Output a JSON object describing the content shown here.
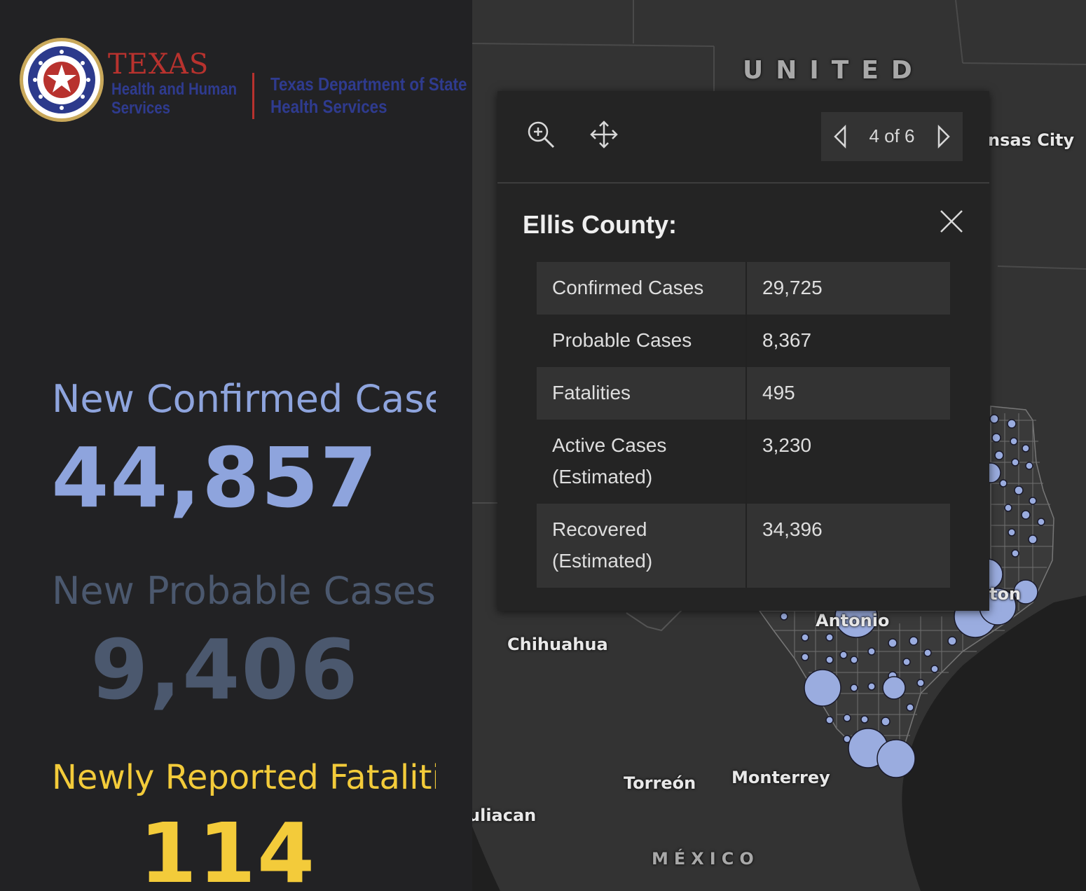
{
  "logo": {
    "hhs_title": "TEXAS",
    "hhs_line1": "Health and Human",
    "hhs_line2": "Services",
    "dshs_line1": "Texas Department of State",
    "dshs_line2": "Health Services"
  },
  "stats": {
    "confirmed_label": "New Confirmed Cases",
    "confirmed_value": "44,857",
    "probable_label": "New Probable Cases",
    "probable_value": "9,406",
    "fatal_label": "Newly Reported Fatalities",
    "fatal_value": "114"
  },
  "map": {
    "labels": {
      "united": "UNITED",
      "kansas_city": "nsas City",
      "chihuahua": "Chihuahua",
      "san_antonio": "Antonio",
      "houston": "ton",
      "torreon": "Torreón",
      "monterrey": "Monterrey",
      "culiacan": "uliacan",
      "mexico": "MÉXICO"
    }
  },
  "popup": {
    "pager": "4 of 6",
    "title": "Ellis County:",
    "rows": [
      {
        "key": "Confirmed Cases",
        "value": "29,725"
      },
      {
        "key": "Probable Cases",
        "value": "8,367"
      },
      {
        "key": "Fatalities",
        "value": "495"
      },
      {
        "key": "Active Cases\n(Estimated)",
        "value": "3,230"
      },
      {
        "key": "Recovered\n(Estimated)",
        "value": "34,396"
      }
    ]
  },
  "colors": {
    "confirmed": "#8ea4dd",
    "probable": "#4b586e",
    "fatal": "#f3cb3a",
    "bubble": "#9aacdf"
  },
  "icons": [
    "zoom-in-icon",
    "pan-icon",
    "chevron-left-icon",
    "chevron-right-icon",
    "close-icon",
    "seal-star-icon"
  ]
}
